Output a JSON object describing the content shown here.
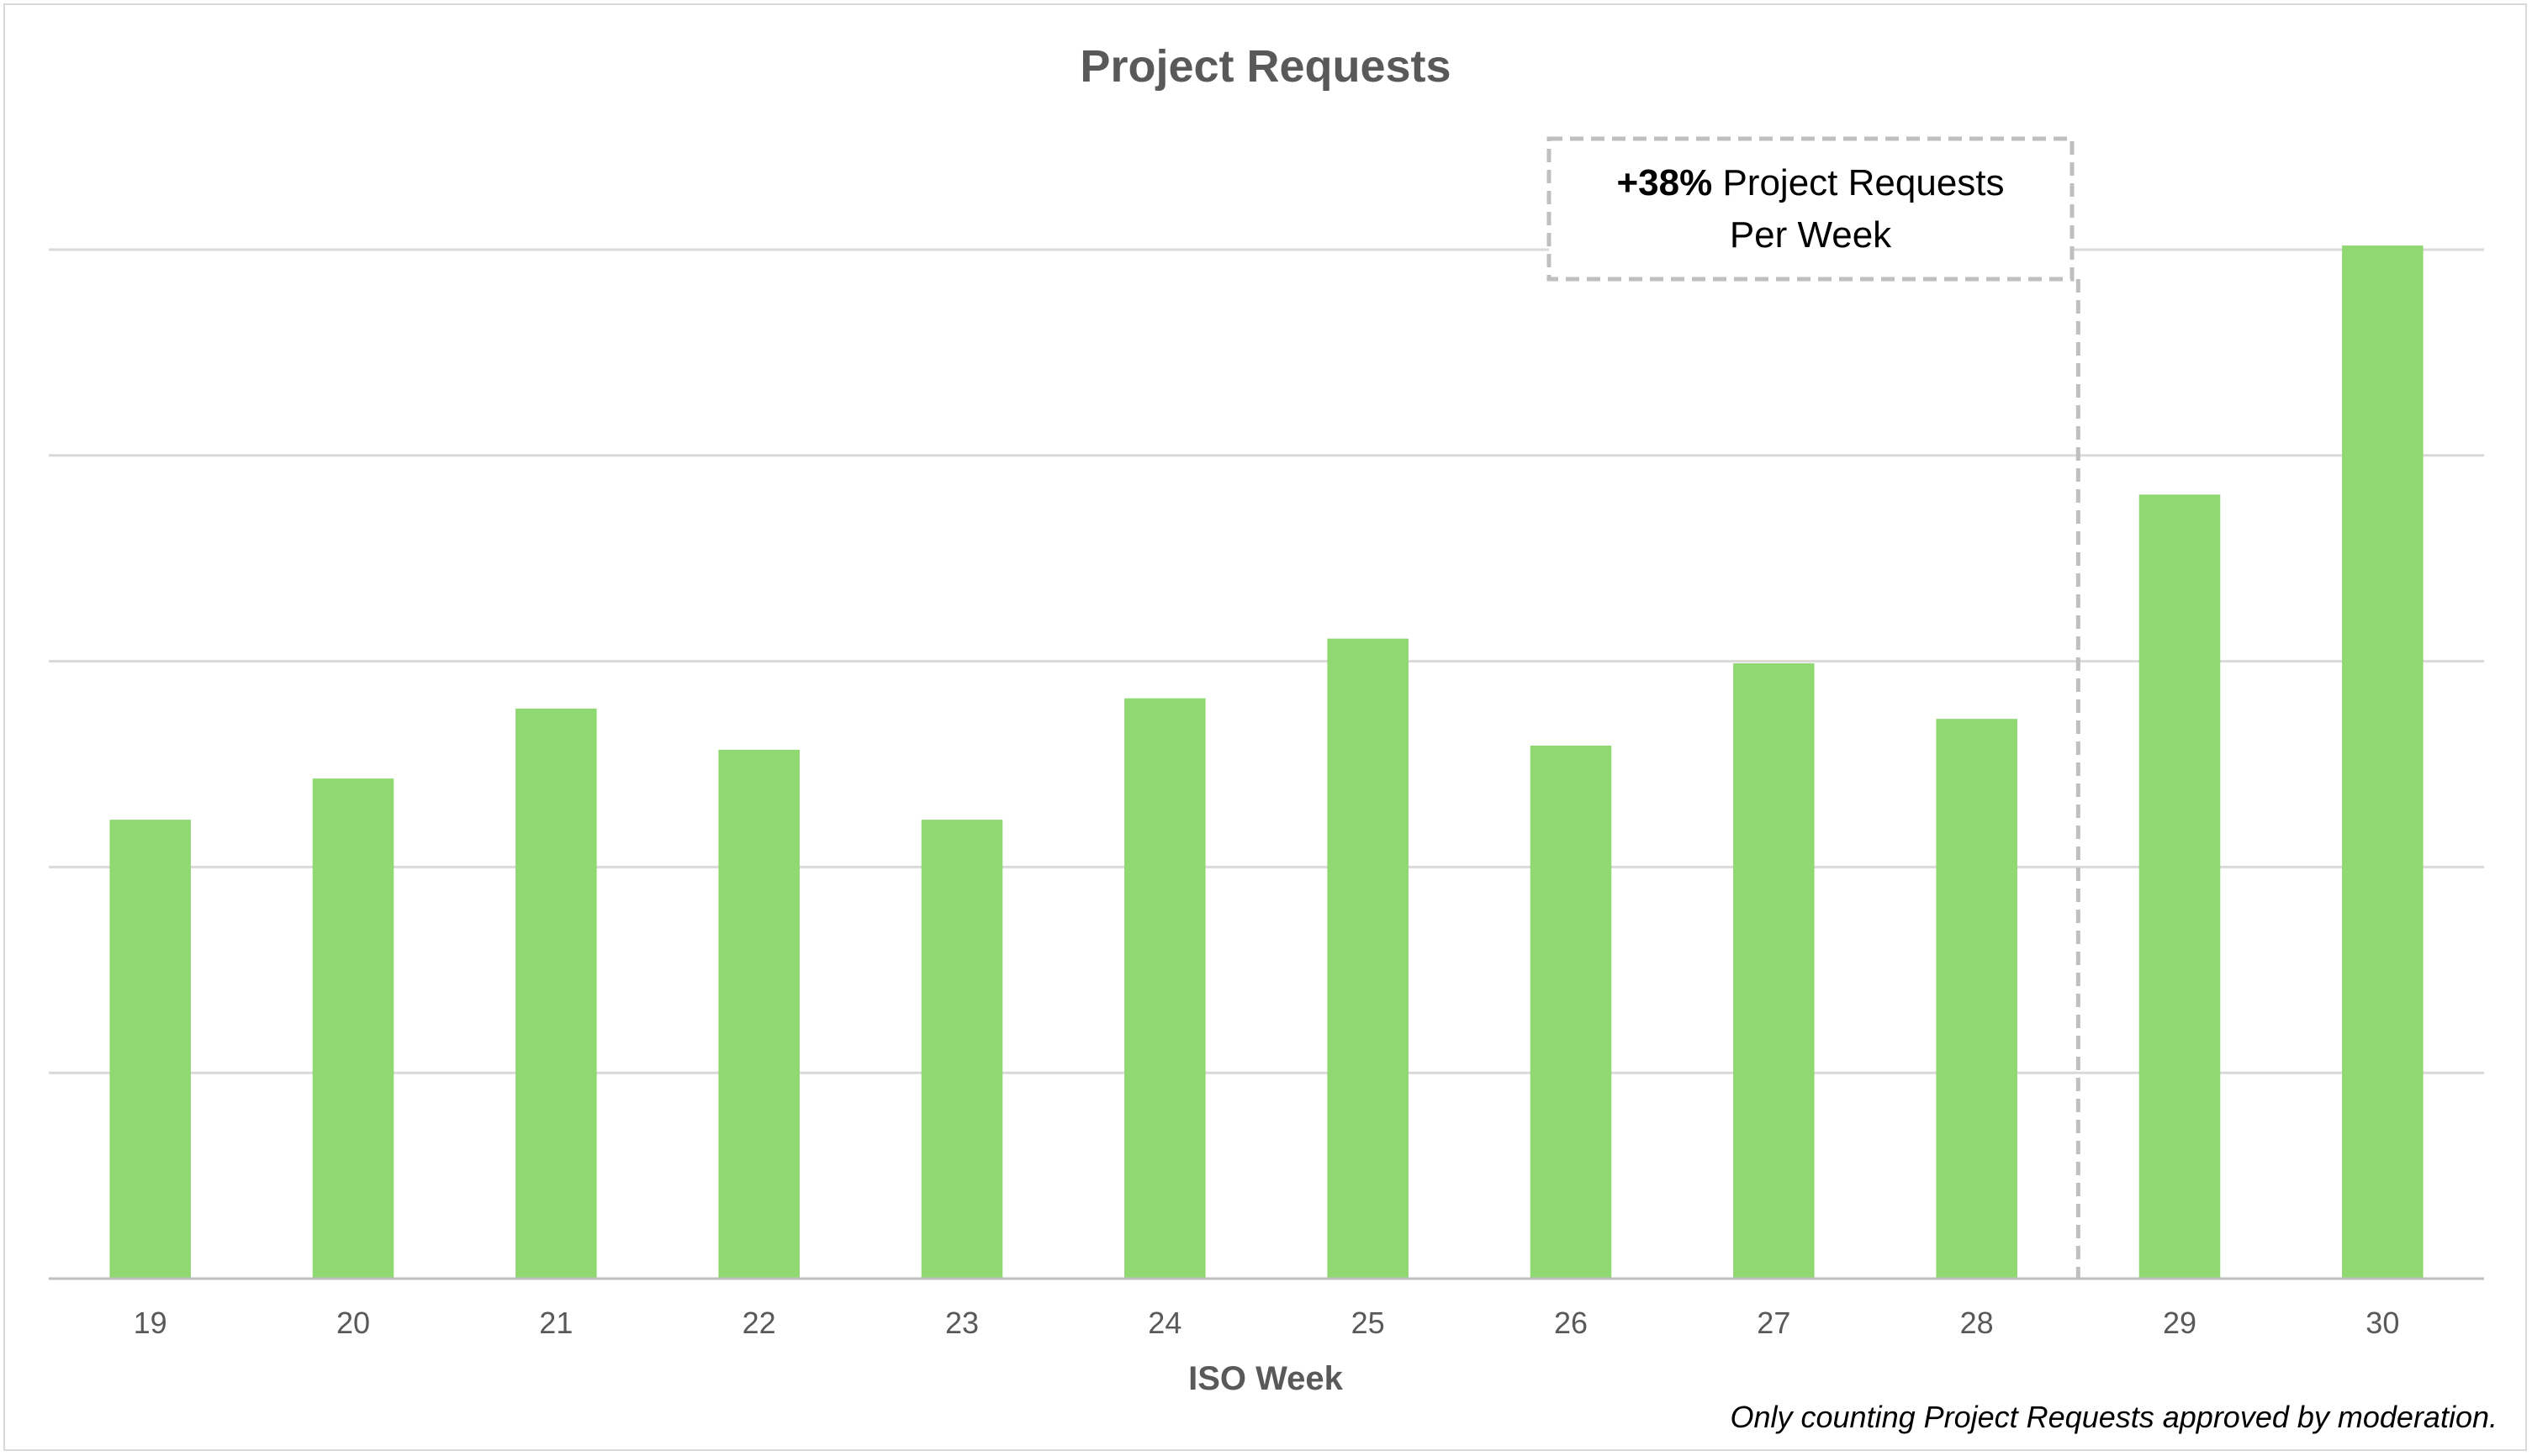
{
  "chart_data": {
    "type": "bar",
    "title": "Project Requests",
    "xlabel": "ISO Week",
    "ylabel": "",
    "categories": [
      "19",
      "20",
      "21",
      "22",
      "23",
      "24",
      "25",
      "26",
      "27",
      "28",
      "29",
      "30"
    ],
    "values": [
      2.23,
      2.43,
      2.77,
      2.57,
      2.23,
      2.82,
      3.11,
      2.59,
      2.99,
      2.72,
      3.81,
      5.02
    ],
    "ylim": [
      0,
      5
    ],
    "grid": true,
    "show_y_tick_labels": false,
    "bar_color": "#8fd872",
    "annotation": {
      "bold": "+38%",
      "text_line1": " Project Requests",
      "text_line2": "Per Week",
      "divider_between": [
        "28",
        "29"
      ]
    },
    "note": "Only counting Project Requests approved by moderation."
  }
}
